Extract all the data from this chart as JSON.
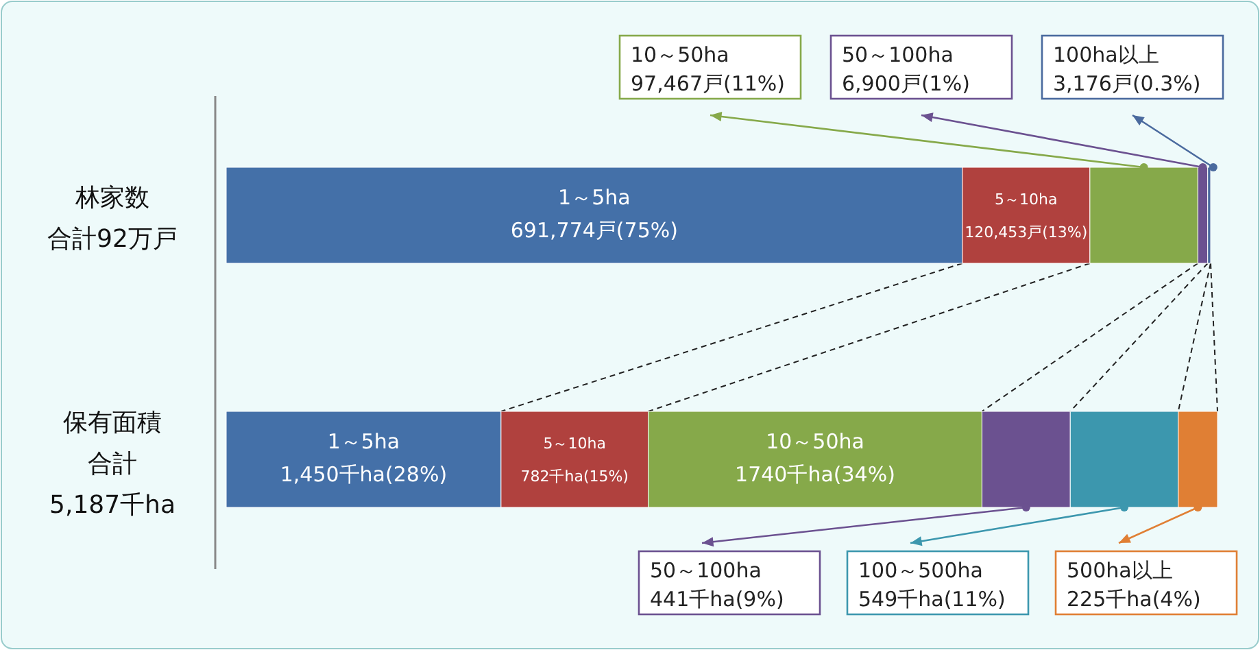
{
  "chart_data": {
    "type": "bar",
    "orientation": "horizontal",
    "stacked": true,
    "categories": [
      "林家数",
      "保有面積"
    ],
    "annotations": [
      "合計92万戸",
      "合計",
      "5,187千ha"
    ],
    "series": [
      {
        "color": "#4470a8",
        "values": [
          75,
          28
        ],
        "value_labels": [
          "1～5ha\n691,774戸(75%)",
          "1～5ha\n1,450千ha(28%)"
        ]
      },
      {
        "color": "#b0413e",
        "values": [
          13,
          15
        ],
        "value_labels": [
          "5～10ha\n120,453戸(13%)",
          "5～10ha\n782千ha(15%)"
        ]
      },
      {
        "color": "#86a94a",
        "values": [
          11,
          34
        ],
        "value_labels": [
          "10～50ha\n97,467戸(11%)",
          "10～50ha\n1740千ha(34%)"
        ]
      },
      {
        "color": "#6b5190",
        "values": [
          1,
          9
        ],
        "value_labels": [
          "50～100ha\n6,900戸(1%)",
          "50～100ha\n441千ha(9%)"
        ]
      },
      {
        "color": "#4a6a9e",
        "values": [
          0.3,
          null
        ],
        "value_labels": [
          "100ha以上\n3,176戸(0.3%)",
          null
        ]
      },
      {
        "color": "#3c97ae",
        "values": [
          null,
          11
        ],
        "value_labels": [
          null,
          "100～500ha\n549千ha(11%)"
        ]
      },
      {
        "color": "#e07f34",
        "values": [
          null,
          4
        ],
        "value_labels": [
          null,
          "500ha以上\n225千ha(4%)"
        ]
      }
    ]
  }
}
